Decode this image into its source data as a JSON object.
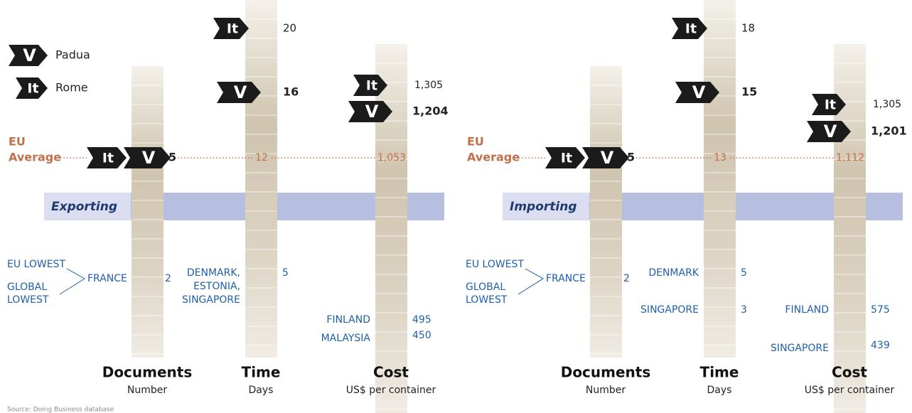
{
  "legend": [
    {
      "symbol": "V",
      "name": "Padua"
    },
    {
      "symbol": "It",
      "name": "Rome"
    }
  ],
  "eu_average": [
    "EU",
    "Average"
  ],
  "panels": [
    {
      "title": "Exporting",
      "documents": {
        "name": "Documents",
        "unit": "Number",
        "value": "5",
        "lowest_labels": [
          [
            "EU LOWEST"
          ],
          [
            "GLOBAL",
            "LOWEST"
          ]
        ],
        "lowest": [
          {
            "country": [
              "FRANCE"
            ],
            "value": "2"
          }
        ]
      },
      "time": {
        "name": "Time",
        "unit": "Days",
        "rome": "20",
        "padua": "16",
        "eu": "12",
        "lowest": [
          {
            "country": [
              "DENMARK,",
              "ESTONIA,",
              "SINGAPORE"
            ],
            "value": "5"
          }
        ]
      },
      "cost": {
        "name": "Cost",
        "unit": "US$ per container",
        "rome": "1,305",
        "padua": "1,204",
        "eu": "1,053",
        "lowest": [
          {
            "country": [
              "FINLAND"
            ],
            "value": "495"
          },
          {
            "country": [
              "MALAYSIA"
            ],
            "value": "450"
          }
        ]
      }
    },
    {
      "title": "Importing",
      "documents": {
        "name": "Documents",
        "unit": "Number",
        "value": "5",
        "lowest_labels": [
          [
            "EU LOWEST"
          ],
          [
            "GLOBAL",
            "LOWEST"
          ]
        ],
        "lowest": [
          {
            "country": [
              "FRANCE"
            ],
            "value": "2"
          }
        ]
      },
      "time": {
        "name": "Time",
        "unit": "Days",
        "rome": "18",
        "padua": "15",
        "eu": "13",
        "lowest": [
          {
            "country": [
              "DENMARK"
            ],
            "value": "5"
          },
          {
            "country": [
              "SINGAPORE"
            ],
            "value": "3"
          }
        ]
      },
      "cost": {
        "name": "Cost",
        "unit": "US$ per container",
        "rome": "1,305",
        "padua": "1,201",
        "eu": "1,112",
        "lowest": [
          {
            "country": [
              "FINLAND"
            ],
            "value": "575"
          },
          {
            "country": [
              "SINGAPORE"
            ],
            "value": "439"
          }
        ]
      }
    }
  ],
  "source": "Source: Doing Business database"
}
